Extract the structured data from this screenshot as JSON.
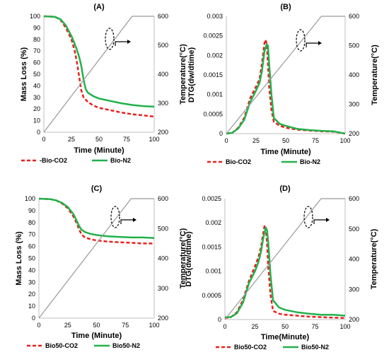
{
  "chart_data": [
    {
      "panel": "(A)",
      "type": "line",
      "title": "(A)",
      "xlabel": "Time (Minute)",
      "ylabel": "Mass Loss (%)",
      "y2label": "Temperature(°C)",
      "xlim": [
        0,
        100
      ],
      "ylim": [
        0,
        100
      ],
      "y2lim": [
        200,
        600
      ],
      "xticks": [
        0,
        25,
        50,
        75,
        100
      ],
      "yticks": [
        0,
        10,
        20,
        30,
        40,
        50,
        60,
        70,
        80,
        90,
        100
      ],
      "y2ticks": [
        200,
        300,
        400,
        500,
        600
      ],
      "series": [
        {
          "name": "Bio-CO2",
          "legend_label": "-Bio-CO2",
          "color": "#e8211d",
          "dash": true,
          "x": [
            0,
            10,
            15,
            20,
            25,
            28,
            30,
            32,
            34,
            36,
            40,
            45,
            50,
            60,
            70,
            80,
            90,
            100
          ],
          "y": [
            100,
            99.5,
            97,
            90,
            80,
            70,
            60,
            48,
            36,
            30,
            26,
            23,
            21,
            19,
            17,
            15.5,
            14.5,
            13.5
          ]
        },
        {
          "name": "Bio-N2",
          "legend_label": "Bio-N2",
          "color": "#22b14c",
          "dash": false,
          "x": [
            0,
            10,
            15,
            20,
            25,
            28,
            30,
            32,
            34,
            36,
            38,
            40,
            45,
            50,
            60,
            70,
            80,
            90,
            100
          ],
          "y": [
            100,
            99.5,
            97.5,
            92,
            83,
            76,
            71,
            65,
            57,
            45,
            37,
            34,
            31,
            29,
            27,
            25,
            23.5,
            22.5,
            22
          ]
        },
        {
          "name": "Temperature",
          "axis": "right",
          "color": "#999999",
          "dash": false,
          "x": [
            0,
            80,
            100
          ],
          "y": [
            200,
            600,
            600
          ]
        }
      ]
    },
    {
      "panel": "(B)",
      "type": "line",
      "title": "(B)",
      "xlabel": "Time (Minute)",
      "ylabel": "DTG(dw/dtime)",
      "y2label": "Temperature(°C)",
      "xlim": [
        0,
        100
      ],
      "ylim": [
        0,
        0.003
      ],
      "y2lim": [
        200,
        600
      ],
      "xticks": [
        0,
        25,
        50,
        75,
        100
      ],
      "yticks": [
        "0",
        "0.0005",
        "0.001",
        "0.0015",
        "0.002",
        "0.0025",
        "0.003"
      ],
      "y2ticks": [
        200,
        300,
        400,
        500,
        600
      ],
      "series": [
        {
          "name": "Bio-CO2",
          "legend_label": "Bio-CO2",
          "color": "#e8211d",
          "dash": true,
          "x": [
            0,
            5,
            10,
            15,
            20,
            25,
            28,
            30,
            32,
            33,
            34,
            35,
            36,
            38,
            40,
            45,
            50,
            60,
            70,
            80,
            90,
            100
          ],
          "y": [
            0,
            2e-05,
            0.00015,
            0.0004,
            0.0009,
            0.0012,
            0.0014,
            0.0018,
            0.0023,
            0.0024,
            0.0023,
            0.0018,
            0.0012,
            0.0006,
            0.0003,
            0.0002,
            0.00015,
            0.0001,
            8e-05,
            6e-05,
            5e-05,
            0
          ]
        },
        {
          "name": "Bio-N2",
          "legend_label": "Bio-N2",
          "color": "#22b14c",
          "dash": false,
          "x": [
            0,
            5,
            10,
            15,
            20,
            25,
            28,
            30,
            32,
            34,
            35,
            36,
            38,
            40,
            45,
            50,
            60,
            70,
            80,
            90,
            100
          ],
          "y": [
            0,
            2e-05,
            0.00013,
            0.00035,
            0.0008,
            0.0011,
            0.0013,
            0.0016,
            0.0021,
            0.00228,
            0.00225,
            0.0018,
            0.001,
            0.0004,
            0.00025,
            0.0002,
            0.00012,
            9e-05,
            7e-05,
            6e-05,
            0
          ]
        },
        {
          "name": "Temperature",
          "axis": "right",
          "color": "#999999",
          "dash": false,
          "x": [
            0,
            80,
            100
          ],
          "y": [
            200,
            600,
            600
          ]
        }
      ]
    },
    {
      "panel": "(C)",
      "type": "line",
      "title": "(C)",
      "xlabel": "Time (Minute)",
      "ylabel": "Mass Loss (%)",
      "y2label": "Temperature(°C)",
      "xlim": [
        0,
        100
      ],
      "ylim": [
        0,
        100
      ],
      "y2lim": [
        200,
        600
      ],
      "xticks": [
        0,
        25,
        50,
        75,
        100
      ],
      "yticks": [
        0,
        10,
        20,
        30,
        40,
        50,
        60,
        70,
        80,
        90,
        100
      ],
      "y2ticks": [
        200,
        300,
        400,
        500,
        600
      ],
      "series": [
        {
          "name": "Bio50-CO2",
          "legend_label": "Bio50-CO2",
          "color": "#e8211d",
          "dash": true,
          "x": [
            0,
            10,
            15,
            20,
            25,
            30,
            33,
            35,
            37,
            40,
            45,
            50,
            60,
            70,
            80,
            90,
            100
          ],
          "y": [
            100,
            99.5,
            98.5,
            96,
            92,
            85,
            79,
            74,
            70,
            67.5,
            66,
            65,
            64,
            63.5,
            63,
            62.5,
            62.5
          ]
        },
        {
          "name": "Bio50-N2",
          "legend_label": "Bio50-N2",
          "color": "#22b14c",
          "dash": false,
          "x": [
            0,
            10,
            15,
            20,
            25,
            30,
            33,
            35,
            37,
            40,
            45,
            50,
            60,
            70,
            80,
            90,
            100
          ],
          "y": [
            100,
            99.5,
            98.5,
            96.5,
            93,
            87,
            81,
            77,
            74,
            72,
            70.5,
            69.5,
            68.5,
            68,
            67.5,
            67.5,
            67
          ]
        },
        {
          "name": "Temperature",
          "axis": "right",
          "color": "#999999",
          "dash": false,
          "x": [
            0,
            80,
            100
          ],
          "y": [
            200,
            600,
            600
          ]
        }
      ]
    },
    {
      "panel": "(D)",
      "type": "line",
      "title": "(D)",
      "xlabel": "Time(Minute)",
      "ylabel": "DTG(dw/dtime)",
      "y2label": "Temperature(°C)",
      "xlim": [
        0,
        100
      ],
      "ylim": [
        0,
        0.0025
      ],
      "y2lim": [
        200,
        600
      ],
      "xticks": [
        0,
        25,
        50,
        75,
        100
      ],
      "yticks": [
        "0",
        "0.0005",
        "0.001",
        "0.0015",
        "0.002",
        "0.0025"
      ],
      "y2ticks": [
        200,
        300,
        400,
        500,
        600
      ],
      "series": [
        {
          "name": "Bio50-CO2",
          "legend_label": "Bio50-CO2",
          "color": "#e8211d",
          "dash": true,
          "x": [
            0,
            5,
            10,
            15,
            20,
            25,
            28,
            30,
            32,
            33,
            34,
            35,
            36,
            38,
            40,
            45,
            50,
            60,
            70,
            80,
            90,
            100
          ],
          "y": [
            3e-05,
            5e-05,
            0.00015,
            0.0004,
            0.0008,
            0.0011,
            0.0013,
            0.0015,
            0.0018,
            0.00195,
            0.0019,
            0.0016,
            0.0011,
            0.0005,
            0.00018,
            0.00012,
            0.0001,
            8e-05,
            6e-05,
            5e-05,
            4e-05,
            3e-05
          ]
        },
        {
          "name": "Bio50-N2",
          "legend_label": "Bio50-N2",
          "color": "#22b14c",
          "dash": false,
          "x": [
            0,
            5,
            10,
            15,
            20,
            25,
            28,
            30,
            32,
            34,
            35,
            36,
            38,
            40,
            45,
            50,
            60,
            70,
            80,
            90,
            100
          ],
          "y": [
            5e-05,
            5e-05,
            0.00013,
            0.00035,
            0.00075,
            0.001,
            0.0012,
            0.0014,
            0.0017,
            0.0019,
            0.00185,
            0.0016,
            0.0009,
            0.0004,
            0.00025,
            0.0002,
            0.00015,
            0.00012,
            0.0001,
            0.0001,
            8e-05
          ]
        },
        {
          "name": "Temperature",
          "axis": "right",
          "color": "#999999",
          "dash": false,
          "x": [
            0,
            80,
            100
          ],
          "y": [
            200,
            600,
            600
          ]
        }
      ]
    }
  ]
}
